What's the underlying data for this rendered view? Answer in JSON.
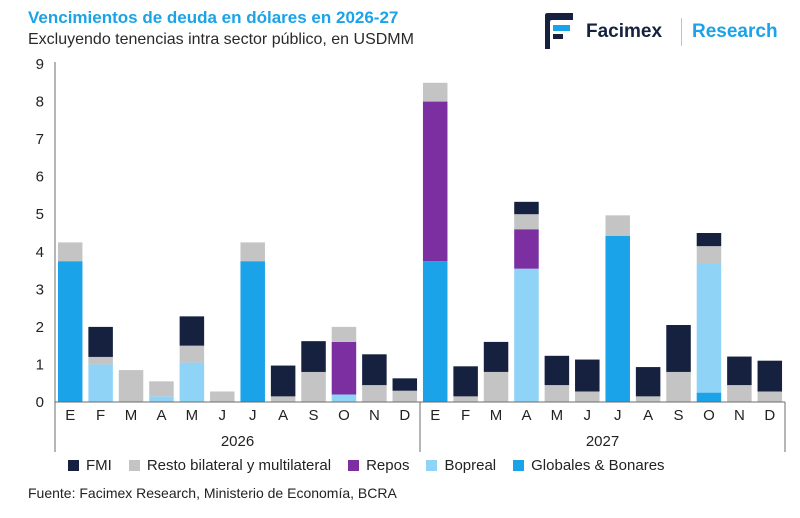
{
  "header": {
    "brand": "Facimex",
    "brand_suffix": "Research"
  },
  "source": "Fuente: Facimex Research, Ministerio de Economía, BCRA",
  "chart_data": {
    "type": "bar",
    "stacked": true,
    "title": "Vencimientos de deuda en dólares en 2026-27",
    "subtitle": "Excluyendo tenencias intra sector público, en USDMM",
    "ylim": [
      0,
      9
    ],
    "yticks": [
      0,
      1,
      2,
      3,
      4,
      5,
      6,
      7,
      8,
      9
    ],
    "categories": [
      "E",
      "F",
      "M",
      "A",
      "M",
      "J",
      "J",
      "A",
      "S",
      "O",
      "N",
      "D",
      "E",
      "F",
      "M",
      "A",
      "M",
      "J",
      "J",
      "A",
      "S",
      "O",
      "N",
      "D"
    ],
    "groups": [
      {
        "label": "2026",
        "start": 0,
        "end": 11
      },
      {
        "label": "2027",
        "start": 12,
        "end": 23
      }
    ],
    "series": [
      {
        "name": "Globales & Bonares",
        "color": "#1aa3e8",
        "values": [
          3.75,
          0,
          0,
          0,
          0,
          0,
          3.75,
          0,
          0,
          0,
          0,
          0,
          3.75,
          0,
          0,
          0,
          0,
          0,
          4.42,
          0,
          0,
          0.25,
          0,
          0
        ]
      },
      {
        "name": "Bopreal",
        "color": "#8fd3f7",
        "values": [
          0,
          1.0,
          0,
          0.15,
          1.05,
          0,
          0,
          0,
          0,
          0.2,
          0,
          0,
          0,
          0,
          0,
          3.55,
          0,
          0,
          0,
          0,
          0,
          3.45,
          0,
          0
        ]
      },
      {
        "name": "Repos",
        "color": "#7b2fa0",
        "values": [
          0,
          0,
          0,
          0,
          0,
          0,
          0,
          0,
          0,
          1.4,
          0,
          0,
          4.25,
          0,
          0,
          1.05,
          0,
          0,
          0,
          0,
          0,
          0,
          0,
          0
        ]
      },
      {
        "name": "Resto bilateral y multilateral",
        "color": "#c4c4c4",
        "values": [
          0.5,
          0.2,
          0.85,
          0.4,
          0.45,
          0.28,
          0.5,
          0.15,
          0.8,
          0.4,
          0.45,
          0.3,
          0.5,
          0.15,
          0.8,
          0.4,
          0.45,
          0.28,
          0.55,
          0.15,
          0.8,
          0.45,
          0.45,
          0.28
        ]
      },
      {
        "name": "FMI",
        "color": "#15213f",
        "values": [
          0,
          0.8,
          0,
          0,
          0.78,
          0,
          0,
          0.82,
          0.82,
          0,
          0.82,
          0.33,
          0,
          0.8,
          0.8,
          0.33,
          0.78,
          0.85,
          0,
          0.78,
          1.25,
          0.35,
          0.76,
          0.82
        ]
      }
    ],
    "legend": [
      "FMI",
      "Resto bilateral y multilateral",
      "Repos",
      "Bopreal",
      "Globales & Bonares"
    ]
  }
}
